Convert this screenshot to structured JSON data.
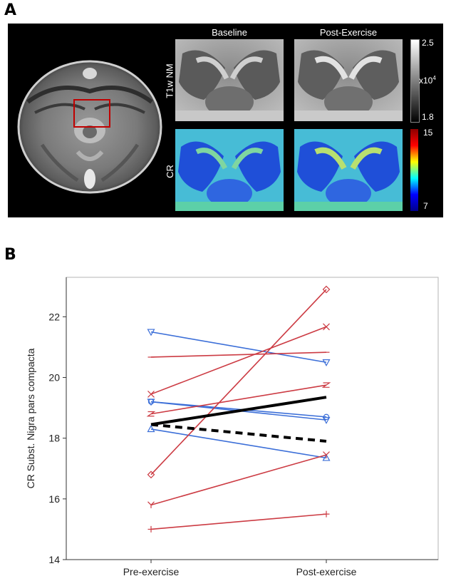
{
  "panel_a": {
    "letter": "A",
    "col_headers": [
      "Baseline",
      "Post-Exercise"
    ],
    "row_labels": [
      "T1w NM",
      "CR"
    ],
    "colorbar_t1w": {
      "max": "2.5",
      "min": "1.8",
      "unit": "x10",
      "unit_exp": "4"
    },
    "colorbar_cr": {
      "max": "15",
      "min": "7"
    },
    "colors": {
      "roi_box": "#c00000",
      "background": "#000000"
    }
  },
  "panel_b": {
    "letter": "B"
  },
  "chart_data": {
    "type": "line",
    "categories": [
      "Pre-exercise",
      "Post-exercise"
    ],
    "ylabel": "CR Subst. Nigra pars compacta",
    "ylim": [
      14,
      23.3
    ],
    "yticks": [
      14,
      16,
      18,
      20,
      22
    ],
    "grid": false,
    "series": [
      {
        "values": [
          21.5,
          20.5
        ],
        "color": "#3c6fd8",
        "marker": "triangle-down"
      },
      {
        "values": [
          19.2,
          18.7
        ],
        "color": "#3c6fd8",
        "marker": "circle"
      },
      {
        "values": [
          19.2,
          18.6
        ],
        "color": "#3c6fd8",
        "marker": "triangle-down"
      },
      {
        "values": [
          18.3,
          17.35
        ],
        "color": "#3c6fd8",
        "marker": "triangle-up"
      },
      {
        "values": [
          20.67,
          20.83
        ],
        "color": "#cc3b43",
        "marker": "dash"
      },
      {
        "values": [
          19.45,
          21.67
        ],
        "color": "#cc3b43",
        "marker": "x"
      },
      {
        "values": [
          18.8,
          19.75
        ],
        "color": "#cc3b43",
        "marker": "z"
      },
      {
        "values": [
          16.8,
          22.9
        ],
        "color": "#cc3b43",
        "marker": "diamond"
      },
      {
        "values": [
          15.8,
          17.45
        ],
        "color": "#cc3b43",
        "marker": "y"
      },
      {
        "values": [
          15.0,
          15.5
        ],
        "color": "#cc3b43",
        "marker": "plus"
      },
      {
        "values": [
          18.45,
          19.35
        ],
        "color": "#000000",
        "marker": "none",
        "style": "solid-thick"
      },
      {
        "values": [
          18.45,
          17.9
        ],
        "color": "#000000",
        "marker": "none",
        "style": "dashed-thick"
      }
    ]
  }
}
